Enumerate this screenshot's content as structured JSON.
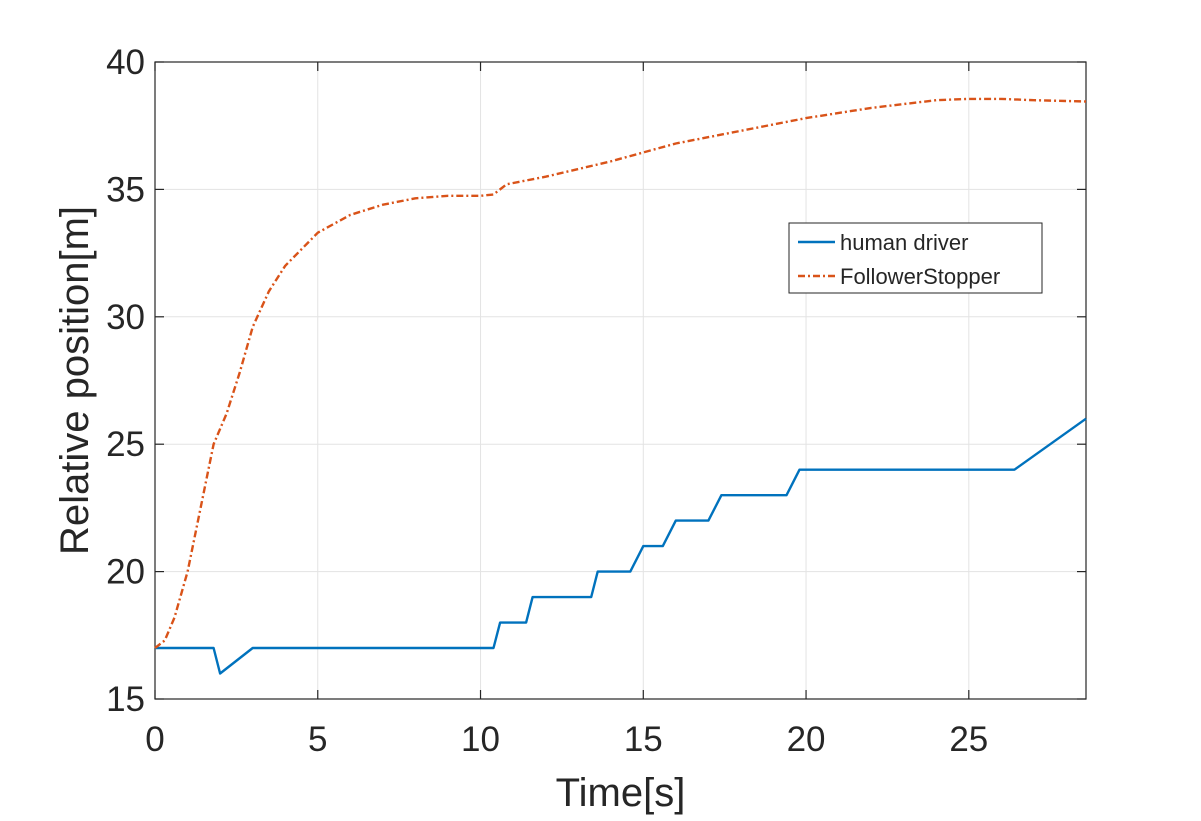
{
  "chart_data": {
    "type": "line",
    "title": "",
    "xlabel": "Time[s]",
    "ylabel": "Relative position[m]",
    "xlim": [
      0,
      28.6
    ],
    "ylim": [
      15,
      40
    ],
    "xticks": [
      0,
      5,
      10,
      15,
      20,
      25
    ],
    "yticks": [
      15,
      20,
      25,
      30,
      35,
      40
    ],
    "grid": true,
    "legend_position": "upper-right (inside)",
    "series": [
      {
        "name": "human driver",
        "color": "#0072BD",
        "line_style": "solid",
        "x": [
          0,
          1.8,
          2.0,
          3.0,
          10.4,
          10.6,
          11.4,
          11.6,
          13.4,
          13.6,
          14.6,
          15.0,
          15.6,
          16.0,
          17.0,
          17.4,
          19.4,
          19.8,
          26.4,
          28.6
        ],
        "y": [
          17,
          17,
          16,
          17,
          17,
          18,
          18,
          19,
          19,
          20,
          20,
          21,
          21,
          22,
          22,
          23,
          23,
          24,
          24,
          26
        ]
      },
      {
        "name": "FollowerStopper",
        "color": "#D95319",
        "line_style": "dash-dot",
        "x": [
          0,
          0.3,
          0.6,
          1.0,
          1.4,
          1.8,
          2.2,
          2.6,
          3.0,
          3.5,
          4.0,
          5.0,
          6.0,
          7.0,
          8.0,
          9.0,
          10.0,
          10.4,
          10.8,
          12.0,
          14.0,
          16.0,
          18.0,
          20.0,
          22.0,
          24.0,
          25.0,
          26.0,
          27.0,
          28.6
        ],
        "y": [
          17,
          17.3,
          18.2,
          20.0,
          22.5,
          25.0,
          26.2,
          27.8,
          29.6,
          31.0,
          32.0,
          33.3,
          34.0,
          34.4,
          34.65,
          34.75,
          34.75,
          34.8,
          35.2,
          35.5,
          36.1,
          36.8,
          37.3,
          37.8,
          38.2,
          38.5,
          38.55,
          38.55,
          38.5,
          38.45
        ]
      }
    ]
  }
}
